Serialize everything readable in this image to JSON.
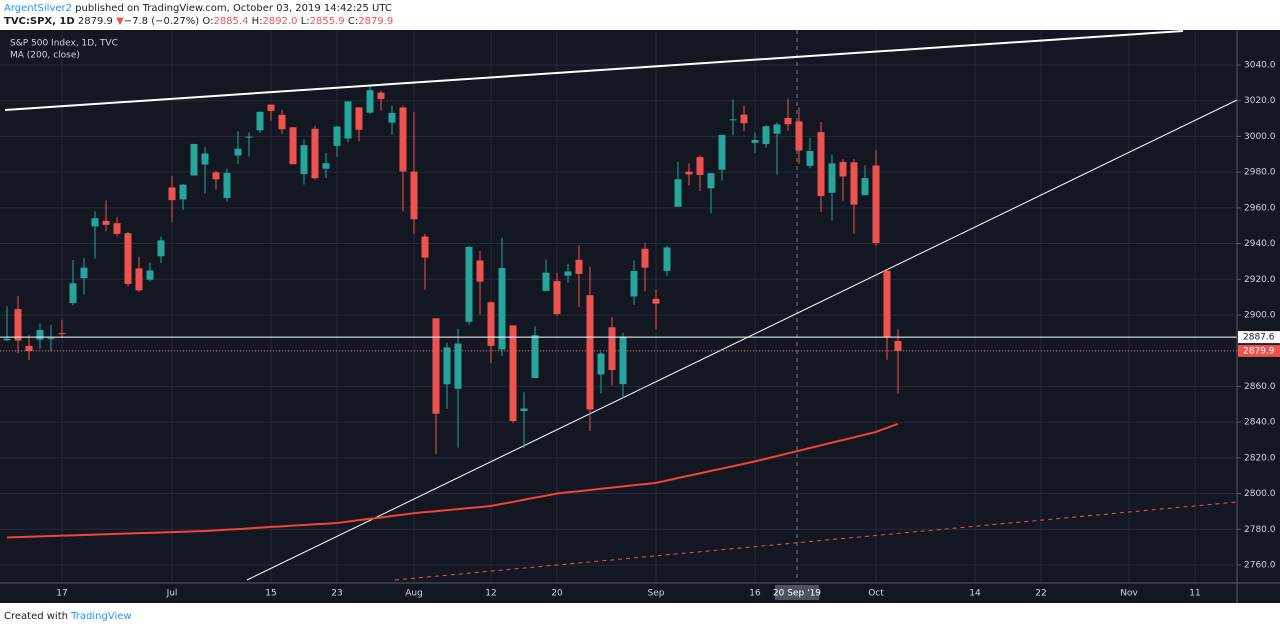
{
  "header": {
    "author": "ArgentSilver2",
    "published": "published on TradingView.com, October 03, 2019 14:42:25 UTC",
    "symbol": "TVC:SPX, 1D",
    "last": "2879.9",
    "arrow": "▼",
    "change": "−7.8 (−0.27%)",
    "open_label": "O:",
    "open": "2885.4",
    "high_label": "H:",
    "high": "2892.0",
    "low_label": "L:",
    "low": "2855.9",
    "close_label": "C:",
    "close": "2879.9"
  },
  "footer": {
    "text": "Created with",
    "brand": "TradingView"
  },
  "crosshair_label": "20 Sep '19",
  "chart_data": {
    "type": "candlestick",
    "background": "#131722",
    "grid": true,
    "categories": [
      null,
      null,
      null,
      null,
      null,
      "17",
      null,
      null,
      null,
      null,
      null,
      null,
      null,
      null,
      null,
      "Jul",
      null,
      null,
      null,
      null,
      null,
      null,
      null,
      null,
      "15",
      null,
      null,
      null,
      null,
      null,
      "23",
      null,
      null,
      null,
      null,
      null,
      null,
      "Aug",
      null,
      null,
      null,
      null,
      null,
      null,
      "12",
      null,
      null,
      null,
      null,
      null,
      "20",
      null,
      null,
      null,
      null,
      null,
      null,
      null,
      null,
      "Sep",
      null,
      null,
      null,
      null,
      null,
      null,
      null,
      null,
      "16",
      null,
      null,
      null,
      null,
      null,
      null,
      null,
      null,
      null,
      null,
      "Oct",
      null,
      null,
      null,
      null,
      null,
      null,
      null,
      null,
      "14",
      null,
      null,
      null,
      null,
      null,
      "22",
      null,
      null,
      null,
      null,
      null,
      null,
      null,
      "Nov",
      null,
      null,
      null,
      null,
      null,
      "11",
      null,
      null,
      null,
      null
    ],
    "ylim": [
      2749.9,
      3059.6
    ],
    "yticks": [
      {
        "value": 2760,
        "label": "2760.0"
      },
      {
        "value": 2780,
        "label": "2780.0"
      },
      {
        "value": 2800,
        "label": "2800.0"
      },
      {
        "value": 2820,
        "label": "2820.0"
      },
      {
        "value": 2840,
        "label": "2840.0"
      },
      {
        "value": 2860,
        "label": "2860.0"
      },
      {
        "value": 2880,
        "label": "2880.0"
      },
      {
        "value": 2900,
        "label": "2900.0"
      },
      {
        "value": 2920,
        "label": "2920.0"
      },
      {
        "value": 2940,
        "label": "2940.0"
      },
      {
        "value": 2960,
        "label": "2960.0"
      },
      {
        "value": 2980,
        "label": "2980.0"
      },
      {
        "value": 3000,
        "label": "3000.0"
      },
      {
        "value": 3020,
        "label": "3020.0"
      },
      {
        "value": 3040,
        "label": "3040.0"
      }
    ],
    "series": [
      {
        "name": "S&P 500 Index, 1D, TVC",
        "type": "candlestick",
        "up_color": "#26a69a",
        "down_color": "#ef5350",
        "open": [
          2885.8,
          2903.3,
          2882.7,
          2886.2,
          2886.8,
          2889.8,
          2906.7,
          2920.6,
          2949.6,
          2952.7,
          2951.4,
          2945.8,
          2926.1,
          2919.7,
          2932.9,
          2971.4,
          2964.7,
          2978.1,
          2984.3,
          2979.8,
          2965.5,
          2989.3,
          2999.6,
          3003.4,
          3017.8,
          3012.1,
          3005.1,
          2978.9,
          3004.3,
          2981.9,
          2994.7,
          2998.8,
          3016.3,
          3013.3,
          3024.5,
          3007.7,
          3016.2,
          2980.3,
          2943.9,
          2898.1,
          2861.2,
          2858.7,
          2896.2,
          2930.5,
          2907.1,
          2880.7,
          2894.2,
          2846.2,
          2864.7,
          2913.5,
          2919.0,
          2922.0,
          2930.9,
          2911.1,
          2866.7,
          2893.1,
          2861.3,
          2910.4,
          2937.1,
          2909.0,
          2924.7,
          2960.6,
          2980.3,
          2988.4,
          2971.0,
          2981.4,
          3009.1,
          3012.2,
          2996.4,
          2995.7,
          3001.5,
          3010.4,
          3008.4,
          2983.5,
          3002.4,
          2968.4,
          2985.7,
          2985.5,
          2967.1,
          2983.7,
          2924.8,
          2885.4,
          null,
          null,
          null,
          null,
          null,
          null,
          null,
          null,
          null,
          null,
          null,
          null,
          null,
          null,
          null,
          null,
          null,
          null,
          null,
          null,
          null,
          null,
          null,
          null,
          null,
          null,
          null,
          null,
          null,
          null,
          null
        ],
        "high": [
          2904.8,
          2910.6,
          2888.6,
          2895.2,
          2894.5,
          2897.3,
          2930.8,
          2931.7,
          2958.1,
          2964.2,
          2954.9,
          2946.5,
          2932.6,
          2929.3,
          2943.9,
          2977.9,
          2973.2,
          2995.8,
          2994.0,
          2980.8,
          2981.9,
          3003.0,
          3002.3,
          3013.9,
          3017.8,
          3015.0,
          3005.3,
          2998.3,
          3006.0,
          2990.7,
          3005.9,
          3019.6,
          3016.3,
          3028.0,
          3025.6,
          3017.2,
          3017.4,
          3013.6,
          2945.5,
          2898.1,
          2884.4,
          2892.2,
          2938.7,
          2935.8,
          2907.6,
          2943.3,
          2894.2,
          2856.7,
          2893.6,
          2931.0,
          2923.6,
          2928.7,
          2939.1,
          2927.0,
          2879.3,
          2898.8,
          2890.0,
          2930.5,
          2940.4,
          2914.4,
          2938.8,
          2985.9,
          2985.0,
          2989.4,
          2979.4,
          3000.9,
          3020.7,
          3017.3,
          3002.2,
          3006.2,
          3007.8,
          3021.2,
          3016.4,
          2999.2,
          3008.0,
          2989.8,
          2987.3,
          2987.3,
          2983.8,
          2992.5,
          2924.8,
          2892.0,
          null,
          null,
          null,
          null,
          null,
          null,
          null,
          null,
          null,
          null,
          null,
          null,
          null,
          null,
          null,
          null,
          null,
          null,
          null,
          null,
          null,
          null,
          null,
          null,
          null,
          null,
          null,
          null,
          null,
          null,
          null
        ],
        "low": [
          2885.5,
          2878.5,
          2874.7,
          2881.1,
          2879.6,
          2887.3,
          2905.4,
          2911.4,
          2931.5,
          2946.9,
          2944.1,
          2916.0,
          2913.0,
          2918.6,
          2929.1,
          2952.2,
          2958.7,
          2978.0,
          2968.0,
          2970.1,
          2963.4,
          2984.6,
          2988.8,
          3001.9,
          3008.8,
          3001.2,
          2984.3,
          2973.1,
          2975.9,
          2976.7,
          2988.6,
          2996.8,
          2997.2,
          3012.6,
          3014.5,
          3000.9,
          2958.1,
          2945.2,
          2914.1,
          2822.1,
          2847.4,
          2825.7,
          2894.5,
          2900.2,
          2873.1,
          2877.1,
          2839.6,
          2825.5,
          2864.7,
          2913.5,
          2899.6,
          2917.9,
          2904.5,
          2835.0,
          2856.0,
          2860.6,
          2853.1,
          2905.7,
          2913.3,
          2891.9,
          2921.9,
          2960.6,
          2972.5,
          2969.4,
          2957.0,
          2975.3,
          3000.9,
          3002.9,
          2990.7,
          2993.7,
          2978.6,
          3003.2,
          2984.7,
          2982.2,
          2957.7,
          2952.9,
          2963.7,
          2945.5,
          2967.1,
          2938.7,
          2874.9,
          2855.9,
          null,
          null,
          null,
          null,
          null,
          null,
          null,
          null,
          null,
          null,
          null,
          null,
          null,
          null,
          null,
          null,
          null,
          null,
          null,
          null,
          null,
          null,
          null,
          null,
          null,
          null,
          null,
          null,
          null,
          null,
          null
        ],
        "close": [
          2886.7,
          2885.7,
          2879.8,
          2891.6,
          2887.0,
          2889.7,
          2917.8,
          2926.5,
          2954.2,
          2950.5,
          2945.4,
          2917.4,
          2913.8,
          2924.9,
          2941.8,
          2964.3,
          2973.0,
          2995.8,
          2990.4,
          2976.0,
          2979.6,
          2993.1,
          2999.9,
          3013.8,
          3014.3,
          3004.0,
          2984.4,
          2995.1,
          2976.6,
          2985.0,
          3005.5,
          3019.6,
          3003.7,
          3025.9,
          3021.0,
          3013.2,
          2980.4,
          2953.6,
          2932.1,
          2844.7,
          2881.8,
          2884.0,
          2938.1,
          2918.7,
          2882.7,
          2926.3,
          2840.6,
          2847.6,
          2888.7,
          2923.7,
          2900.5,
          2924.4,
          2923.0,
          2847.1,
          2878.4,
          2869.2,
          2887.9,
          2924.6,
          2926.5,
          2906.3,
          2937.8,
          2976.0,
          2978.7,
          2978.4,
          2979.4,
          3000.9,
          3009.6,
          3007.4,
          2998.0,
          3005.7,
          3006.7,
          3006.8,
          2992.1,
          2991.8,
          2966.6,
          2984.9,
          2977.6,
          2961.8,
          2976.7,
          2940.3,
          2887.6,
          2879.9,
          null,
          null,
          null,
          null,
          null,
          null,
          null,
          null,
          null,
          null,
          null,
          null,
          null,
          null,
          null,
          null,
          null,
          null,
          null,
          null,
          null,
          null,
          null,
          null,
          null,
          null,
          null,
          null,
          null,
          null,
          null
        ]
      },
      {
        "name": "MA (200, close)",
        "type": "line",
        "color": "#f44336",
        "values": [
          2775.4,
          2775.6,
          2775.8,
          2776.0,
          2776.2,
          2776.4,
          2776.6,
          2776.8,
          2777.0,
          2777.2,
          2777.4,
          2777.6,
          2777.8,
          2778.0,
          2778.2,
          2778.4,
          2778.6,
          2778.8,
          2779.0,
          2779.4,
          2779.8,
          2780.1,
          2780.5,
          2780.9,
          2781.3,
          2781.6,
          2782.0,
          2782.4,
          2782.8,
          2783.1,
          2783.5,
          2784.3,
          2785.1,
          2785.9,
          2786.6,
          2787.4,
          2788.2,
          2789.0,
          2789.6,
          2790.1,
          2790.7,
          2791.3,
          2791.9,
          2792.4,
          2793.0,
          2794.2,
          2795.3,
          2796.5,
          2797.7,
          2798.8,
          2800.0,
          2800.7,
          2801.3,
          2802.0,
          2802.7,
          2803.3,
          2804.0,
          2804.7,
          2805.3,
          2806.0,
          2807.3,
          2808.7,
          2810.0,
          2811.3,
          2812.7,
          2814.0,
          2815.3,
          2816.7,
          2818.0,
          2819.5,
          2821.0,
          2822.5,
          2824.0,
          2825.5,
          2827.0,
          2828.5,
          2830.0,
          2831.5,
          2833.0,
          2834.5,
          2836.8,
          2839.0,
          null,
          null,
          null,
          null,
          null,
          null,
          null,
          null,
          null,
          null,
          null,
          null,
          null,
          null,
          null,
          null,
          null,
          null,
          null,
          null,
          null,
          null,
          null,
          null,
          null,
          null,
          null,
          null,
          null,
          null,
          null
        ]
      }
    ],
    "price_lines": [
      {
        "value": 2887.6,
        "color": "#ffffff",
        "text_color": "#131722"
      },
      {
        "value": 2879.9,
        "color": "#ef5350",
        "text_color": "#ffffff"
      }
    ]
  }
}
